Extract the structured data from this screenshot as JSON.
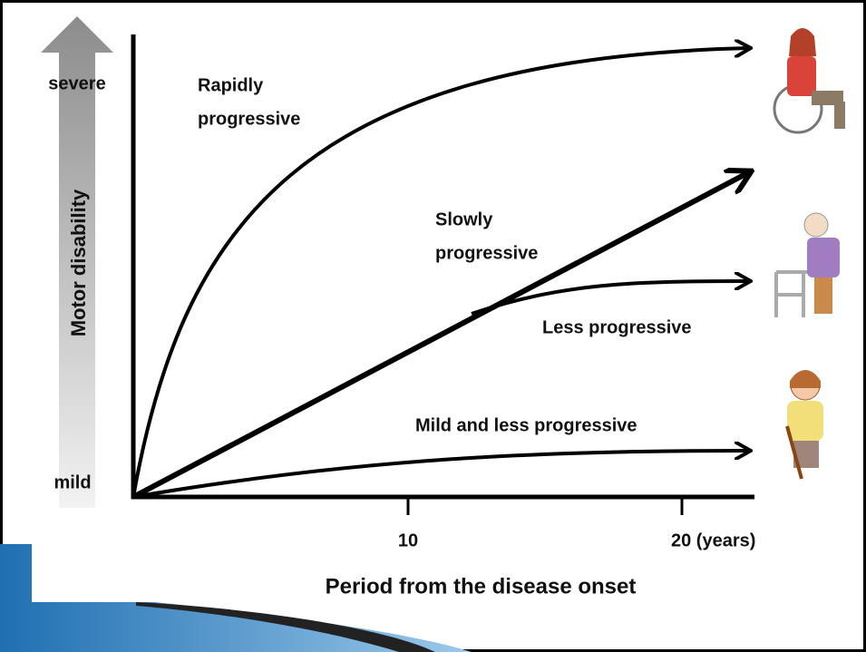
{
  "axis": {
    "y_top": "severe",
    "y_bottom": "mild",
    "y_title": "Motor disability",
    "x_ticks": [
      "10",
      "20 (years)"
    ],
    "x_title": "Period from the disease onset"
  },
  "curves": [
    {
      "label": [
        "Rapidly",
        "progressive"
      ]
    },
    {
      "label": [
        "Slowly",
        "progressive"
      ]
    },
    {
      "label": [
        "Less progressive"
      ]
    },
    {
      "label": [
        "Mild and less progressive"
      ]
    }
  ]
}
